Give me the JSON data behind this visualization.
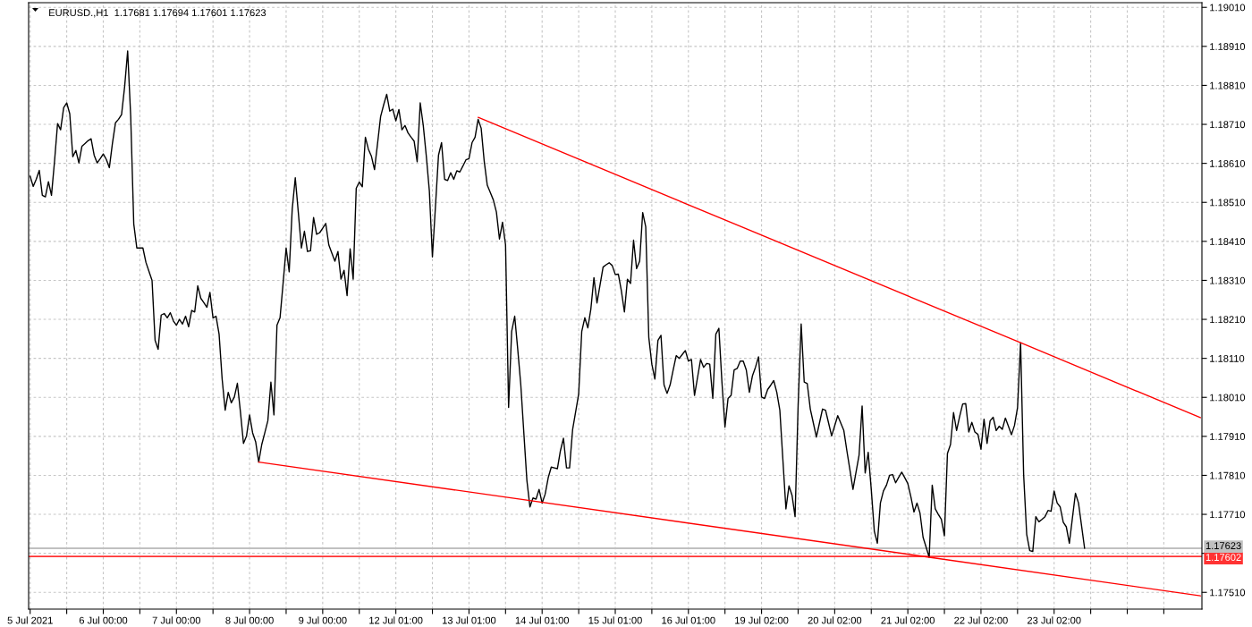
{
  "chart_data": {
    "type": "line",
    "title": "EURUSD.,H1  1.17681 1.17694 1.17601 1.17623",
    "categories": [
      "5 Jul 2021",
      null,
      null,
      null,
      null,
      null,
      null,
      null,
      null,
      null,
      null,
      null,
      null,
      null,
      null,
      null,
      null,
      null,
      null,
      null,
      null,
      null,
      null,
      null,
      "6 Jul 00:00",
      null,
      null,
      null,
      null,
      null,
      null,
      null,
      null,
      null,
      null,
      null,
      null,
      null,
      null,
      null,
      null,
      null,
      null,
      null,
      null,
      null,
      null,
      null,
      "7 Jul 00:00",
      null,
      null,
      null,
      null,
      null,
      null,
      null,
      null,
      null,
      null,
      null,
      null,
      null,
      null,
      null,
      null,
      null,
      null,
      null,
      null,
      null,
      null,
      null,
      "8 Jul 00:00",
      null,
      null,
      null,
      null,
      null,
      null,
      null,
      null,
      null,
      null,
      null,
      null,
      null,
      null,
      null,
      null,
      null,
      null,
      null,
      null,
      null,
      null,
      null,
      "9 Jul 00:00",
      null,
      null,
      null,
      null,
      null,
      null,
      null,
      null,
      null,
      null,
      null,
      null,
      null,
      null,
      null,
      null,
      null,
      null,
      null,
      null,
      null,
      null,
      null,
      "12 Jul 01:00",
      null,
      null,
      null,
      null,
      null,
      null,
      null,
      null,
      null,
      null,
      null,
      null,
      null,
      null,
      null,
      null,
      null,
      null,
      null,
      null,
      null,
      null,
      null,
      "13 Jul 01:00",
      null,
      null,
      null,
      null,
      null,
      null,
      null,
      null,
      null,
      null,
      null,
      null,
      null,
      null,
      null,
      null,
      null,
      null,
      null,
      null,
      null,
      null,
      null,
      "14 Jul 01:00",
      null,
      null,
      null,
      null,
      null,
      null,
      null,
      null,
      null,
      null,
      null,
      null,
      null,
      null,
      null,
      null,
      null,
      null,
      null,
      null,
      null,
      null,
      null,
      "15 Jul 01:00",
      null,
      null,
      null,
      null,
      null,
      null,
      null,
      null,
      null,
      null,
      null,
      null,
      null,
      null,
      null,
      null,
      null,
      null,
      null,
      null,
      null,
      null,
      null,
      "16 Jul 01:00",
      null,
      null,
      null,
      null,
      null,
      null,
      null,
      null,
      null,
      null,
      null,
      null,
      null,
      null,
      null,
      null,
      null,
      null,
      null,
      null,
      null,
      null,
      null,
      "19 Jul 02:00",
      null,
      null,
      null,
      null,
      null,
      null,
      null,
      null,
      null,
      null,
      null,
      null,
      null,
      null,
      null,
      null,
      null,
      null,
      null,
      null,
      null,
      null,
      null,
      "20 Jul 02:00",
      null,
      null,
      null,
      null,
      null,
      null,
      null,
      null,
      null,
      null,
      null,
      null,
      null,
      null,
      null,
      null,
      null,
      null,
      null,
      null,
      null,
      null,
      null,
      "21 Jul 02:00",
      null,
      null,
      null,
      null,
      null,
      null,
      null,
      null,
      null,
      null,
      null,
      null,
      null,
      null,
      null,
      null,
      null,
      null,
      null,
      null,
      null,
      null,
      null,
      "22 Jul 02:00",
      null,
      null,
      null,
      null,
      null,
      null,
      null,
      null,
      null,
      null,
      null,
      null,
      null,
      null,
      null,
      null,
      null,
      null,
      null,
      null,
      null,
      null,
      null,
      "23 Jul 02:00",
      null,
      null,
      null,
      null,
      null,
      null,
      null,
      null,
      null,
      null,
      null,
      null,
      null,
      null,
      null,
      null,
      null,
      null,
      null,
      null,
      null,
      null,
      null,
      null,
      null,
      null,
      null,
      null,
      null,
      null,
      null,
      null,
      null,
      null,
      null,
      null,
      null,
      null,
      null,
      null,
      null,
      null,
      null,
      null,
      null,
      null,
      null,
      null
    ],
    "ylim": [
      1.17467,
      1.19022
    ],
    "yticks": [
      {
        "value": 1.1751,
        "label": "1.17510"
      },
      {
        "value": 1.1761,
        "label": null
      },
      {
        "value": 1.1771,
        "label": "1.17710"
      },
      {
        "value": 1.1781,
        "label": "1.17810"
      },
      {
        "value": 1.1791,
        "label": "1.17910"
      },
      {
        "value": 1.1801,
        "label": "1.18010"
      },
      {
        "value": 1.1811,
        "label": "1.18110"
      },
      {
        "value": 1.1821,
        "label": "1.18210"
      },
      {
        "value": 1.1831,
        "label": "1.18310"
      },
      {
        "value": 1.1841,
        "label": "1.18410"
      },
      {
        "value": 1.1851,
        "label": "1.18510"
      },
      {
        "value": 1.1861,
        "label": "1.18610"
      },
      {
        "value": 1.1871,
        "label": "1.18710"
      },
      {
        "value": 1.1881,
        "label": "1.18810"
      },
      {
        "value": 1.1891,
        "label": "1.18910"
      },
      {
        "value": 1.1901,
        "label": "1.19010"
      }
    ],
    "grid": true,
    "series": [
      {
        "color": "#000000",
        "values": [
          1.18577,
          1.18551,
          1.18569,
          1.18592,
          1.18528,
          1.18524,
          1.18563,
          1.18528,
          1.18615,
          1.18712,
          1.18696,
          1.18753,
          1.18765,
          1.18737,
          1.18627,
          1.18643,
          1.18611,
          1.18654,
          1.18661,
          1.18668,
          1.18673,
          1.18631,
          1.18611,
          1.18622,
          1.18634,
          1.1862,
          1.18599,
          1.18661,
          1.18714,
          1.18723,
          1.18735,
          1.18806,
          1.18898,
          1.1873,
          1.18455,
          1.18393,
          1.18393,
          1.18393,
          1.18356,
          1.18333,
          1.1831,
          1.18156,
          1.18133,
          1.18221,
          1.18225,
          1.18214,
          1.18227,
          1.18206,
          1.18195,
          1.1821,
          1.18198,
          1.18218,
          1.18191,
          1.18233,
          1.18229,
          1.18296,
          1.18264,
          1.18253,
          1.18241,
          1.18279,
          1.18214,
          1.18218,
          1.18172,
          1.18057,
          1.17977,
          1.18023,
          1.17996,
          1.18011,
          1.18046,
          1.17973,
          1.17892,
          1.17911,
          1.17965,
          1.17919,
          1.17896,
          1.17844,
          1.17889,
          1.17919,
          1.1795,
          1.18049,
          1.17965,
          1.18195,
          1.18214,
          1.18302,
          1.18393,
          1.18332,
          1.18493,
          1.18573,
          1.18484,
          1.18393,
          1.18436,
          1.18384,
          1.18386,
          1.18471,
          1.18428,
          1.18432,
          1.18444,
          1.18456,
          1.18401,
          1.1838,
          1.18359,
          1.18384,
          1.18313,
          1.18336,
          1.18271,
          1.18391,
          1.18313,
          1.18546,
          1.18562,
          1.1855,
          1.18677,
          1.18646,
          1.18628,
          1.18594,
          1.18661,
          1.1873,
          1.1876,
          1.18787,
          1.18744,
          1.18749,
          1.18719,
          1.18748,
          1.18696,
          1.18707,
          1.18688,
          1.18677,
          1.18667,
          1.18614,
          1.18765,
          1.18707,
          1.18628,
          1.18539,
          1.1837,
          1.185,
          1.18631,
          1.18663,
          1.18569,
          1.18566,
          1.18586,
          1.18569,
          1.18591,
          1.18588,
          1.18603,
          1.18619,
          1.18622,
          1.18663,
          1.18677,
          1.18723,
          1.187,
          1.18615,
          1.18554,
          1.18535,
          1.18516,
          1.18485,
          1.18416,
          1.18459,
          1.18401,
          1.17984,
          1.18179,
          1.18218,
          1.18133,
          1.18042,
          1.17919,
          1.17797,
          1.17729,
          1.17752,
          1.17749,
          1.17774,
          1.17739,
          1.17762,
          1.17804,
          1.17831,
          1.17829,
          1.17827,
          1.17873,
          1.17905,
          1.17829,
          1.17829,
          1.17927,
          1.17973,
          1.18019,
          1.18179,
          1.18214,
          1.18188,
          1.18237,
          1.18317,
          1.18252,
          1.18298,
          1.18344,
          1.1835,
          1.18355,
          1.18348,
          1.18325,
          1.18326,
          1.18283,
          1.18229,
          1.18313,
          1.18302,
          1.18413,
          1.1834,
          1.18359,
          1.18484,
          1.18447,
          1.18164,
          1.18095,
          1.18057,
          1.18156,
          1.18169,
          1.18042,
          1.1802,
          1.18042,
          1.1808,
          1.18117,
          1.1811,
          1.1812,
          1.1813,
          1.18103,
          1.18107,
          1.18015,
          1.18061,
          1.18107,
          1.18087,
          1.18097,
          1.18095,
          1.18007,
          1.18172,
          1.18187,
          1.18049,
          1.17934,
          1.18007,
          1.18015,
          1.1808,
          1.18084,
          1.18103,
          1.18103,
          1.1808,
          1.18023,
          1.18065,
          1.18087,
          1.18114,
          1.18011,
          1.18007,
          1.1803,
          1.18041,
          1.18053,
          1.18023,
          1.17977,
          1.1785,
          1.17724,
          1.17783,
          1.17759,
          1.17704,
          1.17988,
          1.18198,
          1.18049,
          1.18045,
          1.1798,
          1.17944,
          1.17908,
          1.17944,
          1.1798,
          1.17977,
          1.17944,
          1.17911,
          1.17937,
          1.17963,
          1.17944,
          1.17925,
          1.17873,
          1.17824,
          1.17774,
          1.17818,
          1.17862,
          1.17988,
          1.17816,
          1.17869,
          1.17774,
          1.17667,
          1.17636,
          1.17739,
          1.1777,
          1.17785,
          1.1781,
          1.17812,
          1.17791,
          1.17805,
          1.17818,
          1.17804,
          1.17789,
          1.17755,
          1.17716,
          1.17739,
          1.17713,
          1.17651,
          1.17626,
          1.176,
          1.17785,
          1.17724,
          1.1771,
          1.17697,
          1.17655,
          1.17866,
          1.17889,
          1.17971,
          1.17925,
          1.17961,
          1.17993,
          1.17994,
          1.17921,
          1.17946,
          1.17921,
          1.17915,
          1.17877,
          1.17954,
          1.17892,
          1.1795,
          1.17959,
          1.17925,
          1.17936,
          1.17928,
          1.17957,
          1.17936,
          1.17914,
          1.17938,
          1.17984,
          1.1815,
          1.17812,
          1.17659,
          1.17617,
          1.17615,
          1.17704,
          1.17691,
          1.17697,
          1.17704,
          1.1772,
          1.17718,
          1.1777,
          1.17739,
          1.17729,
          1.1769,
          1.17678,
          1.17636,
          1.177,
          1.17764,
          1.17739,
          1.17681,
          1.17623,
          null,
          null,
          null,
          null,
          null,
          null,
          null,
          null,
          null,
          null,
          null,
          null,
          null,
          null,
          null,
          null,
          null,
          null,
          null,
          null,
          null,
          null,
          null,
          null,
          null,
          null,
          null,
          null,
          null,
          null,
          null,
          null,
          null,
          null,
          null,
          null,
          null,
          null
        ]
      },
      {
        "type": "line",
        "color": "#ff0000",
        "values": [
          null,
          null,
          null,
          null,
          null,
          null,
          null,
          null,
          null,
          null,
          null,
          null,
          null,
          null,
          null,
          null,
          null,
          null,
          null,
          null,
          null,
          null,
          null,
          null,
          null,
          null,
          null,
          null,
          null,
          null,
          null,
          null,
          null,
          null,
          null,
          null,
          null,
          null,
          null,
          null,
          null,
          null,
          null,
          null,
          null,
          null,
          null,
          null,
          null,
          null,
          null,
          null,
          null,
          null,
          null,
          null,
          null,
          null,
          null,
          null,
          null,
          null,
          null,
          null,
          null,
          null,
          null,
          null,
          null,
          null,
          null,
          null,
          null,
          null,
          null,
          null,
          null,
          null,
          null,
          null,
          null,
          null,
          null,
          null,
          null,
          null,
          null,
          null,
          null,
          null,
          null,
          null,
          null,
          null,
          null,
          null,
          null,
          null,
          null,
          null,
          null,
          null,
          null,
          null,
          null,
          null,
          null,
          null,
          null,
          null,
          null,
          null,
          null,
          null,
          null,
          null,
          null,
          null,
          null,
          null,
          null,
          null,
          null,
          null,
          null,
          null,
          null,
          null,
          null,
          null,
          null,
          null,
          null,
          null,
          null,
          null,
          null,
          null,
          null,
          null,
          null,
          null,
          null,
          null,
          null,
          null,
          null,
          1.18728,
          null,
          null,
          null,
          null,
          null,
          null,
          null,
          null,
          null,
          null,
          null,
          null,
          null,
          null,
          null,
          null,
          null,
          null,
          null,
          null,
          null,
          null,
          null,
          null,
          null,
          null,
          null,
          null,
          null,
          null,
          null,
          null,
          null,
          null,
          null,
          null,
          null,
          null,
          null,
          null,
          null,
          null,
          null,
          null,
          null,
          null,
          null,
          null,
          null,
          null,
          null,
          null,
          null,
          null,
          null,
          null,
          null,
          null,
          null,
          null,
          null,
          null,
          null,
          null,
          null,
          null,
          null,
          null,
          null,
          null,
          null,
          null,
          null,
          null,
          null,
          null,
          null,
          null,
          null,
          null,
          null,
          null,
          null,
          null,
          null,
          null,
          null,
          null,
          null,
          null,
          null,
          null,
          null,
          null,
          null,
          null,
          null,
          null,
          null,
          null,
          null,
          null,
          null,
          null,
          null,
          null,
          null,
          null,
          null,
          null,
          null,
          null,
          null,
          null,
          null,
          null,
          null,
          null,
          null,
          null,
          null,
          null,
          null,
          null,
          null,
          null,
          null,
          null,
          null,
          null,
          null,
          null,
          null,
          null,
          null,
          null,
          null,
          null,
          null,
          null,
          null,
          null,
          null,
          null,
          null,
          null,
          null,
          null,
          null,
          null,
          null,
          null,
          null,
          null,
          null,
          null,
          null,
          null,
          null,
          null,
          null,
          null,
          null,
          null,
          null,
          null,
          null,
          null,
          null,
          null,
          null,
          null,
          null,
          null,
          null,
          null,
          null,
          1.1815,
          null,
          null,
          null,
          null,
          null,
          null,
          null,
          null,
          null,
          null,
          null,
          null,
          null,
          null,
          null,
          null,
          null,
          null,
          null,
          null,
          null,
          null,
          null,
          null,
          null,
          null,
          null,
          null,
          null,
          null,
          null,
          null,
          null,
          null,
          null,
          null,
          null,
          null,
          null,
          null,
          null,
          null,
          null,
          null,
          null,
          null,
          null,
          null,
          null,
          null,
          null,
          null,
          null,
          null,
          null,
          null,
          null,
          null,
          1.17958
        ]
      },
      {
        "type": "line",
        "color": "#ff0000",
        "values": [
          null,
          null,
          null,
          null,
          null,
          null,
          null,
          null,
          null,
          null,
          null,
          null,
          null,
          null,
          null,
          null,
          null,
          null,
          null,
          null,
          null,
          null,
          null,
          null,
          null,
          null,
          null,
          null,
          null,
          null,
          null,
          null,
          null,
          null,
          null,
          null,
          null,
          null,
          null,
          null,
          null,
          null,
          null,
          null,
          null,
          null,
          null,
          null,
          null,
          null,
          null,
          null,
          null,
          null,
          null,
          null,
          null,
          null,
          null,
          null,
          null,
          null,
          null,
          null,
          null,
          null,
          null,
          null,
          null,
          null,
          null,
          null,
          null,
          null,
          null,
          1.17844,
          null,
          null,
          null,
          null,
          null,
          null,
          null,
          null,
          null,
          null,
          null,
          null,
          null,
          null,
          null,
          null,
          null,
          null,
          null,
          null,
          null,
          null,
          null,
          null,
          null,
          null,
          null,
          null,
          null,
          null,
          null,
          null,
          null,
          null,
          null,
          null,
          null,
          null,
          null,
          null,
          null,
          null,
          null,
          null,
          null,
          null,
          null,
          null,
          null,
          null,
          null,
          null,
          null,
          null,
          null,
          null,
          null,
          null,
          null,
          null,
          null,
          null,
          null,
          null,
          null,
          null,
          null,
          null,
          null,
          null,
          null,
          null,
          null,
          null,
          null,
          null,
          null,
          null,
          null,
          null,
          null,
          null,
          null,
          null,
          null,
          null,
          null,
          null,
          null,
          null,
          null,
          null,
          null,
          null,
          null,
          null,
          null,
          null,
          null,
          null,
          null,
          null,
          null,
          null,
          null,
          null,
          null,
          null,
          null,
          null,
          null,
          null,
          null,
          null,
          null,
          null,
          null,
          null,
          null,
          null,
          null,
          null,
          null,
          null,
          null,
          null,
          null,
          null,
          null,
          null,
          null,
          null,
          null,
          null,
          null,
          null,
          null,
          null,
          null,
          null,
          null,
          null,
          null,
          null,
          null,
          null,
          null,
          null,
          null,
          null,
          null,
          null,
          null,
          null,
          null,
          null,
          null,
          null,
          null,
          null,
          null,
          null,
          null,
          null,
          null,
          null,
          null,
          null,
          null,
          null,
          null,
          null,
          null,
          null,
          null,
          null,
          null,
          null,
          null,
          null,
          null,
          null,
          null,
          null,
          null,
          null,
          null,
          null,
          null,
          null,
          null,
          null,
          null,
          null,
          null,
          null,
          null,
          null,
          null,
          null,
          null,
          null,
          null,
          null,
          null,
          null,
          null,
          null,
          null,
          null,
          null,
          null,
          null,
          null,
          null,
          null,
          null,
          null,
          null,
          1.176,
          null,
          null,
          null,
          null,
          null,
          null,
          null,
          null,
          null,
          null,
          null,
          null,
          null,
          null,
          null,
          null,
          null,
          null,
          null,
          null,
          null,
          null,
          null,
          null,
          null,
          null,
          null,
          null,
          null,
          null,
          null,
          null,
          null,
          null,
          null,
          null,
          null,
          null,
          null,
          null,
          null,
          null,
          null,
          null,
          null,
          null,
          null,
          null,
          null,
          null,
          null,
          null,
          null,
          null,
          null,
          null,
          null,
          null,
          null,
          null,
          null,
          null,
          null,
          null,
          null,
          null,
          null,
          null,
          null,
          null,
          null,
          null,
          null,
          null,
          null,
          null,
          null,
          null,
          null,
          null,
          null,
          null,
          null,
          null,
          null,
          null,
          null,
          null,
          1.17501
        ]
      }
    ],
    "ref_lines": [
      {
        "axis": "y",
        "value": 1.17623,
        "label": "1.17623",
        "color": "#c0c0c0"
      },
      {
        "axis": "y",
        "value": 1.17602,
        "label": "1.17602",
        "color": "#ff3333"
      }
    ]
  }
}
